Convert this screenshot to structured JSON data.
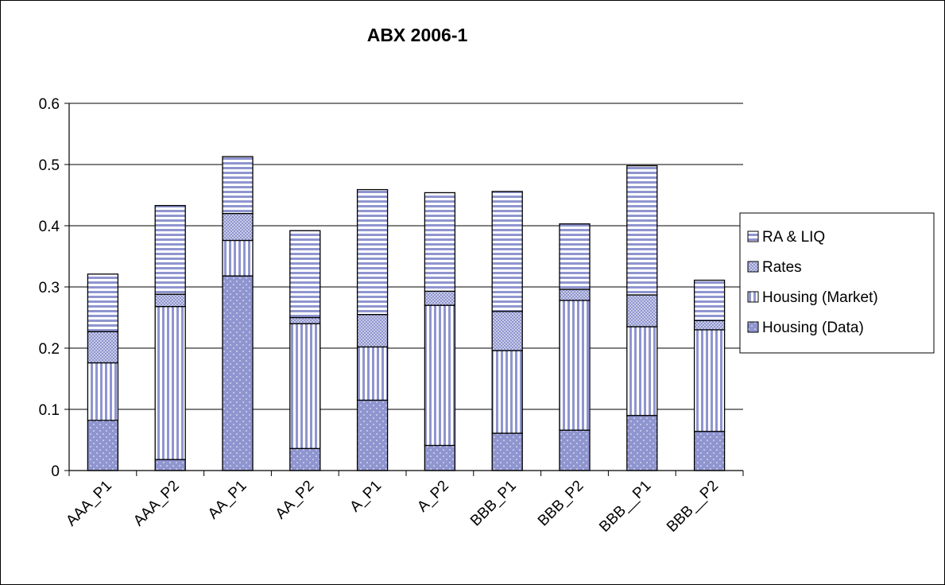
{
  "chart_data": {
    "type": "bar",
    "stacked": true,
    "title": "ABX 2006-1",
    "xlabel": "",
    "ylabel": "",
    "categories": [
      "AAA_P1",
      "AAA_P2",
      "AA_P1",
      "AA_P2",
      "A_P1",
      "A_P2",
      "BBB_P1",
      "BBB_P2",
      "BBB__P1",
      "BBB__P2"
    ],
    "ylim": [
      0,
      0.6
    ],
    "yticks": [
      "0",
      "0.1",
      "0.2",
      "0.3",
      "0.4",
      "0.5",
      "0.6"
    ],
    "grid": true,
    "legend_position": "right",
    "series": [
      {
        "name": "Housing (Data)",
        "pattern": "dots",
        "values": [
          0.082,
          0.018,
          0.318,
          0.036,
          0.115,
          0.041,
          0.061,
          0.066,
          0.09,
          0.064
        ]
      },
      {
        "name": "Housing (Market)",
        "pattern": "vertical",
        "values": [
          0.094,
          0.25,
          0.058,
          0.204,
          0.087,
          0.229,
          0.135,
          0.212,
          0.145,
          0.166
        ]
      },
      {
        "name": "Rates",
        "pattern": "checker",
        "values": [
          0.051,
          0.02,
          0.044,
          0.01,
          0.053,
          0.023,
          0.064,
          0.018,
          0.052,
          0.015
        ]
      },
      {
        "name": "RA & LIQ",
        "pattern": "horizontal",
        "values": [
          0.094,
          0.145,
          0.093,
          0.142,
          0.204,
          0.161,
          0.196,
          0.107,
          0.211,
          0.066
        ]
      }
    ],
    "colors": {
      "bar_fill": "#8f95cf",
      "bar_light": "#ffffff",
      "outline": "#000000",
      "grid": "#000000"
    }
  }
}
